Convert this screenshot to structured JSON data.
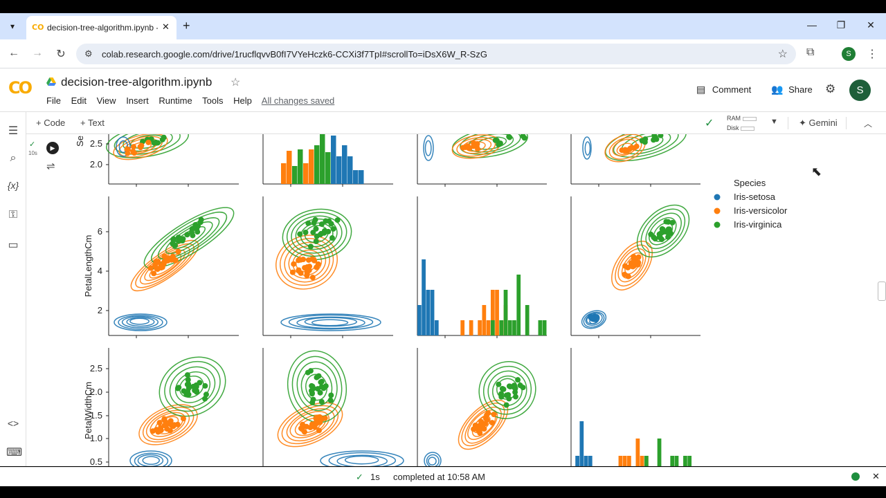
{
  "browser": {
    "tab_title": "decision-tree-algorithm.ipynb -",
    "tab_favicon": "CO",
    "url": "colab.research.google.com/drive/1rucflqvvB0fI7VYeHczk6-CCXi3f7TpI#scrollTo=iDsX6W_R-SzG",
    "profile_letter": "S"
  },
  "colab": {
    "logo": "CO",
    "notebook_name": "decision-tree-algorithm.ipynb",
    "menu": [
      "File",
      "Edit",
      "View",
      "Insert",
      "Runtime",
      "Tools",
      "Help"
    ],
    "save_status": "All changes saved",
    "comment_label": "Comment",
    "share_label": "Share",
    "avatar_letter": "S",
    "add_code": "+ Code",
    "add_text": "+ Text",
    "ram_label": "RAM",
    "disk_label": "Disk",
    "gemini_label": "Gemini",
    "cell_exec_time": "10s"
  },
  "status": {
    "duration": "1s",
    "message": "completed at 10:58 AM"
  },
  "colors": {
    "setosa": "#1f77b4",
    "versicolor": "#ff7f0e",
    "virginica": "#2ca02c",
    "accent": "#1a73e8"
  },
  "chart_data": {
    "type": "scatter",
    "title": "",
    "legend_title": "Species",
    "legend_position": "right",
    "series": [
      {
        "name": "Iris-setosa"
      },
      {
        "name": "Iris-versicolor"
      },
      {
        "name": "Iris-virginica"
      }
    ],
    "row_labels": [
      "Se",
      "PetalLengthCm",
      "PetalWidthCm"
    ],
    "rows": [
      {
        "ylabel": "Se",
        "ticks": [
          "2.5",
          "2.0"
        ],
        "tick_values": [
          2.5,
          2.0
        ]
      },
      {
        "ylabel": "PetalLengthCm",
        "ticks": [
          "6",
          "4",
          "2"
        ],
        "tick_values": [
          6,
          4,
          2
        ]
      },
      {
        "ylabel": "PetalWidthCm",
        "ticks": [
          "2.5",
          "2.0",
          "1.5",
          "1.0",
          "0.5"
        ],
        "tick_values": [
          2.5,
          2.0,
          1.5,
          1.0,
          0.5
        ]
      }
    ],
    "petal_length_hist": {
      "Iris-setosa": [
        1.1,
        1.2,
        1.3,
        1.3,
        1.4,
        1.4,
        1.4,
        1.5,
        1.5,
        1.5,
        1.6,
        1.6,
        1.7,
        1.9
      ],
      "Iris-versicolor": [
        3.0,
        3.5,
        3.9,
        4.0,
        4.1,
        4.2,
        4.4,
        4.5,
        4.5,
        4.6,
        4.7,
        4.7,
        4.8,
        5.0,
        5.1
      ],
      "Iris-virginica": [
        4.5,
        4.8,
        5.0,
        5.1,
        5.1,
        5.3,
        5.5,
        5.6,
        5.6,
        5.7,
        5.8,
        6.0,
        6.1,
        6.7,
        6.9
      ]
    },
    "petal_width_hist": {
      "Iris-setosa": [
        0.1,
        0.2,
        0.2,
        0.2,
        0.3,
        0.4
      ],
      "Iris-versicolor": [
        1.0,
        1.1,
        1.2,
        1.3,
        1.3,
        1.4,
        1.5
      ],
      "Iris-virginica": [
        1.5,
        1.8,
        1.8,
        2.0,
        2.1,
        2.3,
        2.4
      ]
    }
  }
}
